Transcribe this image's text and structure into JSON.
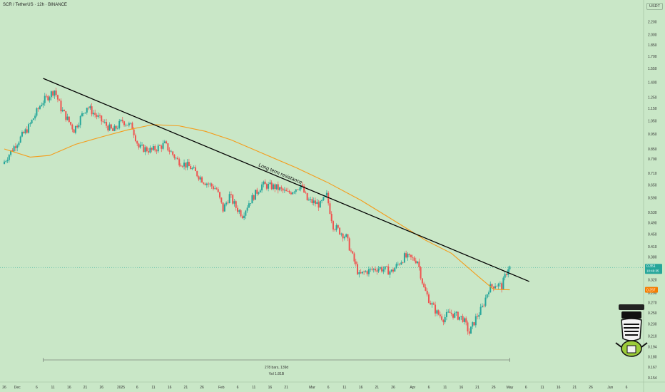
{
  "header": {
    "title": "SCR / TetherUS · 12h · BINANCE",
    "unit_button": "USDT"
  },
  "chart_data": {
    "type": "candlestick",
    "title": "SCR / TetherUS · 12h · BINANCE",
    "scale": "log",
    "ylim": [
      0.154,
      2.4
    ],
    "y_ticks": [
      "2.200",
      "2.000",
      "1.850",
      "1.700",
      "1.550",
      "1.400",
      "1.250",
      "1.150",
      "1.050",
      "0.950",
      "0.850",
      "0.790",
      "0.710",
      "0.650",
      "0.590",
      "0.530",
      "0.490",
      "0.450",
      "0.410",
      "0.380",
      "0.350",
      "0.320",
      "0.290",
      "0.270",
      "0.250",
      "0.230",
      "0.210",
      "0.194",
      "0.180",
      "0.167",
      "0.154"
    ],
    "y_tick_values": [
      2.2,
      2.0,
      1.85,
      1.7,
      1.55,
      1.4,
      1.25,
      1.15,
      1.05,
      0.95,
      0.85,
      0.79,
      0.71,
      0.65,
      0.59,
      0.53,
      0.49,
      0.45,
      0.41,
      0.38,
      0.35,
      0.32,
      0.29,
      0.27,
      0.25,
      0.23,
      0.21,
      0.194,
      0.18,
      0.167,
      0.154
    ],
    "x_ticks": [
      {
        "label": "26",
        "day": 0
      },
      {
        "label": "Dec",
        "day": 4
      },
      {
        "label": "6",
        "day": 10
      },
      {
        "label": "11",
        "day": 15
      },
      {
        "label": "16",
        "day": 20
      },
      {
        "label": "21",
        "day": 25
      },
      {
        "label": "26",
        "day": 30
      },
      {
        "label": "2025",
        "day": 36
      },
      {
        "label": "6",
        "day": 41
      },
      {
        "label": "11",
        "day": 46
      },
      {
        "label": "16",
        "day": 51
      },
      {
        "label": "21",
        "day": 56
      },
      {
        "label": "26",
        "day": 61
      },
      {
        "label": "Feb",
        "day": 67
      },
      {
        "label": "6",
        "day": 72
      },
      {
        "label": "11",
        "day": 77
      },
      {
        "label": "16",
        "day": 82
      },
      {
        "label": "21",
        "day": 87
      },
      {
        "label": "Mar",
        "day": 95
      },
      {
        "label": "6",
        "day": 100
      },
      {
        "label": "11",
        "day": 105
      },
      {
        "label": "16",
        "day": 110
      },
      {
        "label": "21",
        "day": 115
      },
      {
        "label": "26",
        "day": 120
      },
      {
        "label": "Apr",
        "day": 126
      },
      {
        "label": "6",
        "day": 131
      },
      {
        "label": "11",
        "day": 136
      },
      {
        "label": "16",
        "day": 141
      },
      {
        "label": "21",
        "day": 146
      },
      {
        "label": "26",
        "day": 151
      },
      {
        "label": "May",
        "day": 156
      },
      {
        "label": "6",
        "day": 161
      },
      {
        "label": "11",
        "day": 166
      },
      {
        "label": "16",
        "day": 171
      },
      {
        "label": "21",
        "day": 176
      },
      {
        "label": "26",
        "day": 181
      },
      {
        "label": "Jun",
        "day": 187
      },
      {
        "label": "6",
        "day": 192
      }
    ],
    "price_path": [
      {
        "day": 0,
        "price": 0.76
      },
      {
        "day": 4,
        "price": 0.88
      },
      {
        "day": 8,
        "price": 1.0
      },
      {
        "day": 12,
        "price": 1.2
      },
      {
        "day": 16,
        "price": 1.32
      },
      {
        "day": 18,
        "price": 1.15
      },
      {
        "day": 22,
        "price": 0.98
      },
      {
        "day": 26,
        "price": 1.17
      },
      {
        "day": 30,
        "price": 1.06
      },
      {
        "day": 34,
        "price": 0.97
      },
      {
        "day": 37,
        "price": 1.05
      },
      {
        "day": 40,
        "price": 1.0
      },
      {
        "day": 42,
        "price": 0.86
      },
      {
        "day": 46,
        "price": 0.84
      },
      {
        "day": 50,
        "price": 0.88
      },
      {
        "day": 54,
        "price": 0.78
      },
      {
        "day": 58,
        "price": 0.74
      },
      {
        "day": 62,
        "price": 0.67
      },
      {
        "day": 66,
        "price": 0.63
      },
      {
        "day": 68,
        "price": 0.54
      },
      {
        "day": 70,
        "price": 0.6
      },
      {
        "day": 72,
        "price": 0.55
      },
      {
        "day": 74,
        "price": 0.52
      },
      {
        "day": 76,
        "price": 0.57
      },
      {
        "day": 80,
        "price": 0.65
      },
      {
        "day": 84,
        "price": 0.64
      },
      {
        "day": 88,
        "price": 0.61
      },
      {
        "day": 92,
        "price": 0.65
      },
      {
        "day": 94,
        "price": 0.58
      },
      {
        "day": 98,
        "price": 0.56
      },
      {
        "day": 100,
        "price": 0.6
      },
      {
        "day": 102,
        "price": 0.48
      },
      {
        "day": 106,
        "price": 0.44
      },
      {
        "day": 108,
        "price": 0.38
      },
      {
        "day": 110,
        "price": 0.33
      },
      {
        "day": 112,
        "price": 0.34
      },
      {
        "day": 116,
        "price": 0.35
      },
      {
        "day": 120,
        "price": 0.34
      },
      {
        "day": 124,
        "price": 0.38
      },
      {
        "day": 128,
        "price": 0.37
      },
      {
        "day": 130,
        "price": 0.3
      },
      {
        "day": 132,
        "price": 0.27
      },
      {
        "day": 134,
        "price": 0.25
      },
      {
        "day": 136,
        "price": 0.24
      },
      {
        "day": 138,
        "price": 0.25
      },
      {
        "day": 142,
        "price": 0.24
      },
      {
        "day": 144,
        "price": 0.215
      },
      {
        "day": 146,
        "price": 0.24
      },
      {
        "day": 148,
        "price": 0.26
      },
      {
        "day": 150,
        "price": 0.3
      },
      {
        "day": 152,
        "price": 0.31
      },
      {
        "day": 154,
        "price": 0.305
      },
      {
        "day": 156,
        "price": 0.351
      }
    ],
    "series": [
      {
        "name": "Moving average",
        "color": "#f59c1a",
        "values": [
          {
            "day": 0,
            "price": 0.85
          },
          {
            "day": 8,
            "price": 0.8
          },
          {
            "day": 14,
            "price": 0.81
          },
          {
            "day": 22,
            "price": 0.88
          },
          {
            "day": 30,
            "price": 0.93
          },
          {
            "day": 38,
            "price": 0.98
          },
          {
            "day": 46,
            "price": 1.02
          },
          {
            "day": 54,
            "price": 1.01
          },
          {
            "day": 62,
            "price": 0.97
          },
          {
            "day": 70,
            "price": 0.91
          },
          {
            "day": 80,
            "price": 0.82
          },
          {
            "day": 90,
            "price": 0.74
          },
          {
            "day": 100,
            "price": 0.66
          },
          {
            "day": 110,
            "price": 0.58
          },
          {
            "day": 120,
            "price": 0.5
          },
          {
            "day": 130,
            "price": 0.43
          },
          {
            "day": 138,
            "price": 0.39
          },
          {
            "day": 146,
            "price": 0.33
          },
          {
            "day": 151,
            "price": 0.298
          },
          {
            "day": 156,
            "price": 0.297
          }
        ]
      }
    ],
    "trendline": {
      "label": "Long term resistance",
      "start": {
        "day": 12,
        "price": 1.44
      },
      "end": {
        "day": 162,
        "price": 0.316
      },
      "color": "#000000"
    },
    "last_price": {
      "label": "0.351",
      "countdown": "10:46:35",
      "color": "#26a69a"
    },
    "ma_price": {
      "label": "0.297",
      "color": "#f57c00"
    },
    "range_measure": {
      "start_day": 12,
      "end_day": 156,
      "text_line1": "278 bars, 139d",
      "text_line2": "Vol 1.81B"
    },
    "bullish_color": "#26a69a",
    "bearish_color": "#ef5350"
  }
}
